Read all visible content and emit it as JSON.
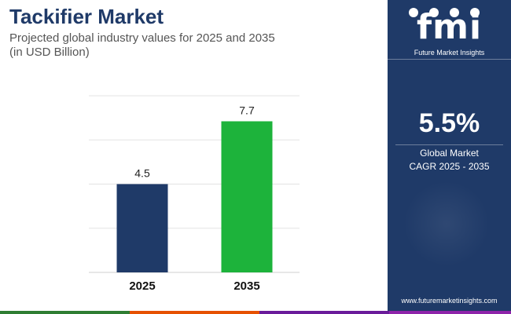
{
  "header": {
    "title": "Tackifier Market",
    "subtitle_line1": "Projected global industry values for 2025 and 2035",
    "subtitle_line2": "(in USD Billion)"
  },
  "chart_data": {
    "type": "bar",
    "categories": [
      "2025",
      "2035"
    ],
    "values": [
      4.5,
      7.7
    ],
    "value_labels": [
      "4.5",
      "7.7"
    ],
    "bar_colors": [
      "#1f3a68",
      "#1db33b"
    ],
    "ylim": [
      0,
      9
    ],
    "grid": true,
    "title": "",
    "xlabel": "",
    "ylabel": ""
  },
  "sidebar": {
    "logo_text": "fmi",
    "logo_subtitle": "Future Market Insights",
    "cagr_value": "5.5%",
    "cagr_label_line1": "Global Market",
    "cagr_label_line2": "CAGR 2025 - 2035",
    "url": "www.futuremarketinsights.com"
  },
  "colors": {
    "brand_navy": "#1f3a68",
    "accent_green": "#1db33b",
    "bottom_bar": [
      "#2e7d32",
      "#e65100",
      "#6a1b9a",
      "#8e24aa"
    ]
  }
}
